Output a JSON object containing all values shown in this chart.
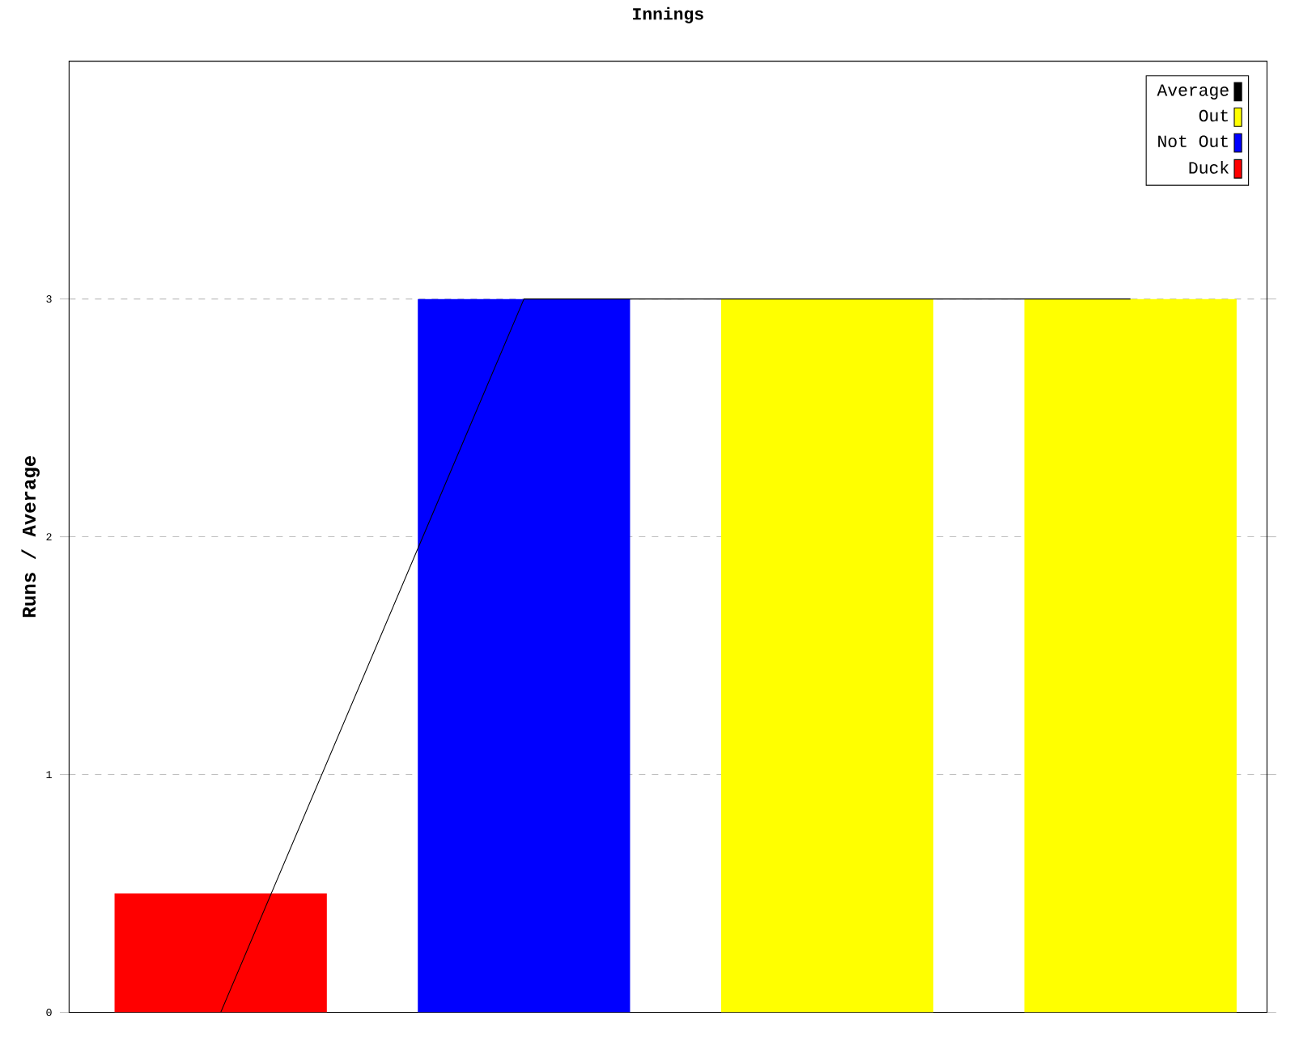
{
  "chart_data": {
    "type": "bar",
    "title": "Innings",
    "ylabel": "Runs / Average",
    "categories": [
      null,
      null,
      null,
      null
    ],
    "series": [
      {
        "name": "Average",
        "type": "line",
        "color": "#000000",
        "values": [
          0,
          3,
          3,
          3
        ]
      },
      {
        "name": "Out",
        "color": "#ffff00",
        "values": [
          null,
          null,
          3,
          3
        ]
      },
      {
        "name": "Not Out",
        "color": "#0000ff",
        "values": [
          null,
          3,
          null,
          null
        ]
      },
      {
        "name": "Duck",
        "color": "#ff0000",
        "values": [
          0.5,
          null,
          null,
          null
        ]
      }
    ],
    "ylim": [
      0,
      4
    ],
    "yticks": [
      0,
      1,
      2,
      3
    ],
    "grid": "y",
    "legend": "top right",
    "marker": "none"
  }
}
